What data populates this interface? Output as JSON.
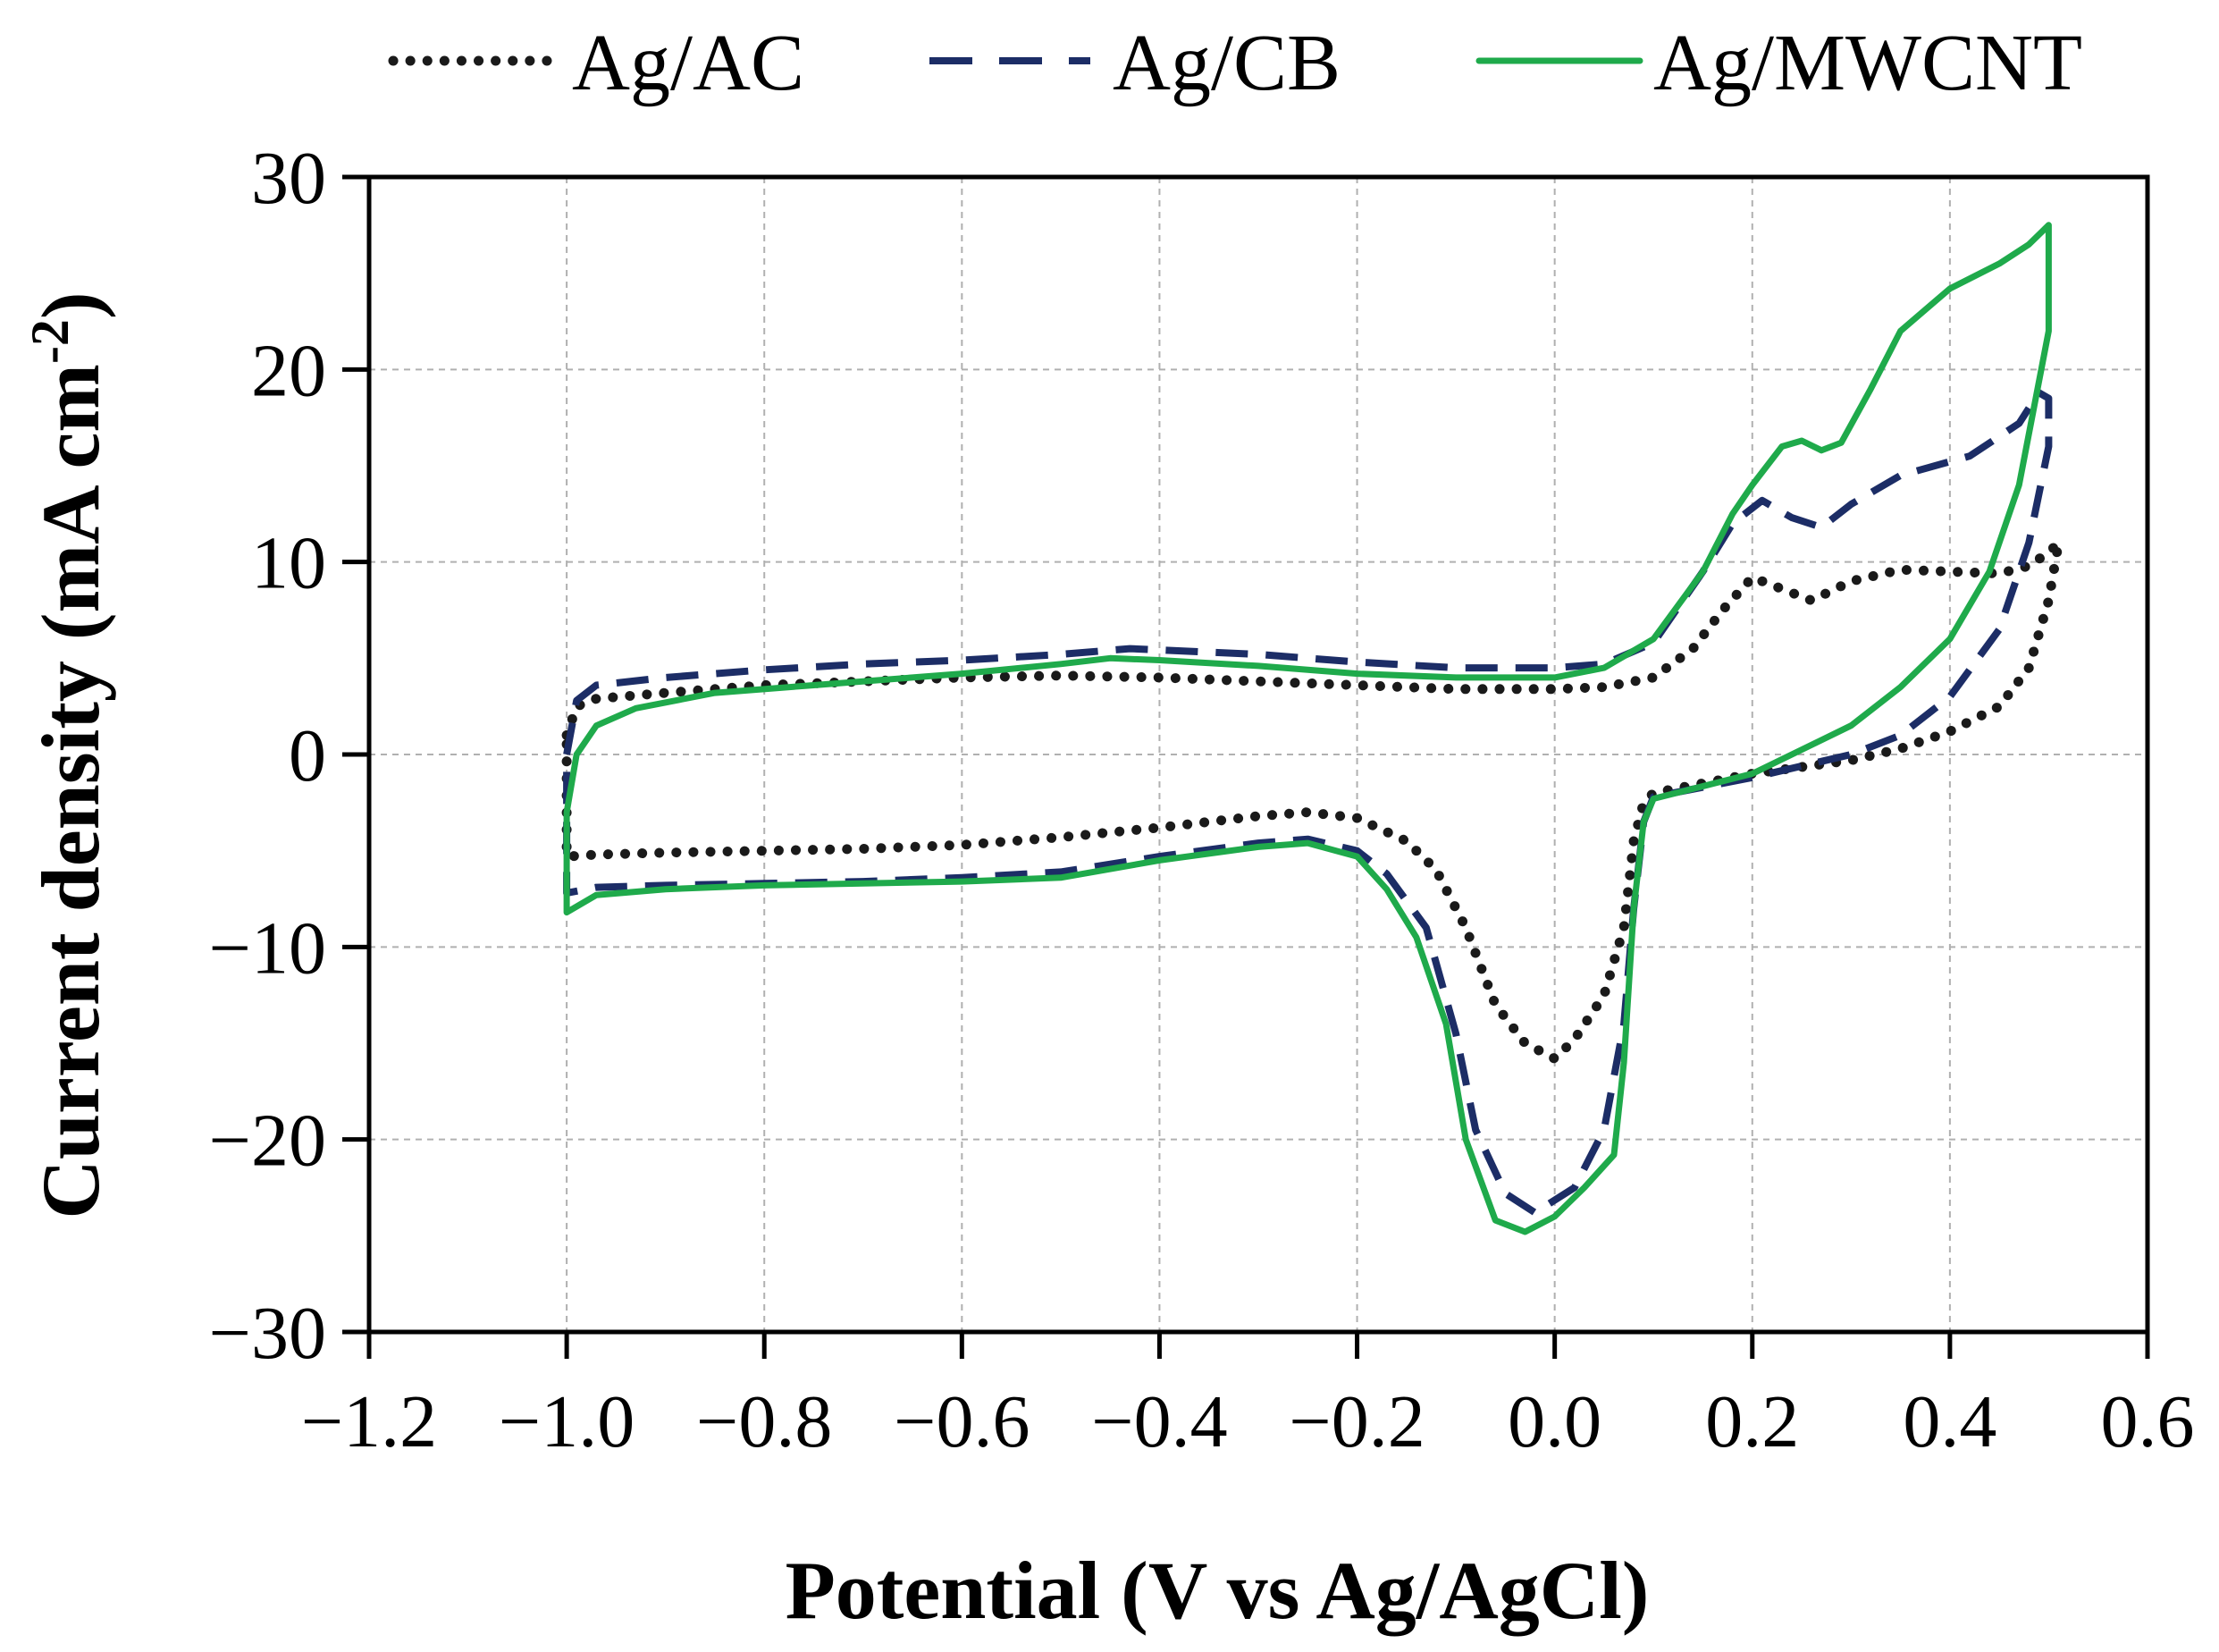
{
  "chart_data": {
    "type": "line",
    "title": "",
    "xlabel": "Potential (V vs Ag/AgCl)",
    "ylabel_main": "Current density (mA cm",
    "ylabel_sup": "-2",
    "ylabel_close": ")",
    "xlim": [
      -1.2,
      0.6
    ],
    "ylim": [
      -30,
      30
    ],
    "xticks": [
      -1.2,
      -1.0,
      -0.8,
      -0.6,
      -0.4,
      -0.2,
      0.0,
      0.2,
      0.4,
      0.6
    ],
    "xtick_labels": [
      "−1.2",
      "−1.0",
      "−0.8",
      "−0.6",
      "−0.4",
      "−0.2",
      "0.0",
      "0.2",
      "0.4",
      "0.6"
    ],
    "yticks": [
      -30,
      -20,
      -10,
      0,
      10,
      20,
      30
    ],
    "ytick_labels": [
      "−30",
      "−20",
      "−10",
      "0",
      "10",
      "20",
      "30"
    ],
    "grid": true,
    "legend_position": "top",
    "series": [
      {
        "name": "Ag/AC",
        "style": "dotted",
        "color": "#1a1a1a",
        "points": [
          [
            -1.0,
            1.0
          ],
          [
            -0.99,
            2.5
          ],
          [
            -0.97,
            2.9
          ],
          [
            -0.9,
            3.2
          ],
          [
            -0.8,
            3.6
          ],
          [
            -0.7,
            3.8
          ],
          [
            -0.6,
            4.0
          ],
          [
            -0.5,
            4.1
          ],
          [
            -0.4,
            4.0
          ],
          [
            -0.3,
            3.8
          ],
          [
            -0.2,
            3.6
          ],
          [
            -0.1,
            3.4
          ],
          [
            0.0,
            3.4
          ],
          [
            0.05,
            3.5
          ],
          [
            0.1,
            4.0
          ],
          [
            0.14,
            5.5
          ],
          [
            0.17,
            7.5
          ],
          [
            0.2,
            9.2
          ],
          [
            0.23,
            8.6
          ],
          [
            0.26,
            8.0
          ],
          [
            0.3,
            9.0
          ],
          [
            0.35,
            9.6
          ],
          [
            0.4,
            9.5
          ],
          [
            0.45,
            9.4
          ],
          [
            0.48,
            9.8
          ],
          [
            0.5,
            10.5
          ],
          [
            0.51,
            11.0
          ],
          [
            0.5,
            8.0
          ],
          [
            0.48,
            4.5
          ],
          [
            0.45,
            2.5
          ],
          [
            0.4,
            1.2
          ],
          [
            0.35,
            0.3
          ],
          [
            0.3,
            -0.3
          ],
          [
            0.2,
            -1.0
          ],
          [
            0.1,
            -2.0
          ],
          [
            0.09,
            -2.5
          ],
          [
            0.08,
            -4.5
          ],
          [
            0.07,
            -9.0
          ],
          [
            0.05,
            -12.5
          ],
          [
            0.02,
            -14.8
          ],
          [
            0.0,
            -15.8
          ],
          [
            -0.03,
            -15.0
          ],
          [
            -0.06,
            -13.0
          ],
          [
            -0.09,
            -9.0
          ],
          [
            -0.12,
            -6.0
          ],
          [
            -0.15,
            -4.5
          ],
          [
            -0.2,
            -3.3
          ],
          [
            -0.25,
            -3.0
          ],
          [
            -0.3,
            -3.2
          ],
          [
            -0.4,
            -3.8
          ],
          [
            -0.5,
            -4.3
          ],
          [
            -0.6,
            -4.7
          ],
          [
            -0.7,
            -4.9
          ],
          [
            -0.8,
            -5.0
          ],
          [
            -0.9,
            -5.1
          ],
          [
            -0.97,
            -5.2
          ],
          [
            -1.0,
            -5.3
          ],
          [
            -1.0,
            1.0
          ]
        ]
      },
      {
        "name": "Ag/CB",
        "style": "dashed",
        "color": "#1c2d66",
        "points": [
          [
            -1.0,
            0.0
          ],
          [
            -0.99,
            2.8
          ],
          [
            -0.97,
            3.6
          ],
          [
            -0.9,
            4.0
          ],
          [
            -0.8,
            4.4
          ],
          [
            -0.7,
            4.7
          ],
          [
            -0.6,
            4.9
          ],
          [
            -0.5,
            5.2
          ],
          [
            -0.43,
            5.5
          ],
          [
            -0.3,
            5.2
          ],
          [
            -0.2,
            4.8
          ],
          [
            -0.1,
            4.5
          ],
          [
            0.0,
            4.5
          ],
          [
            0.05,
            4.7
          ],
          [
            0.1,
            5.8
          ],
          [
            0.15,
            9.5
          ],
          [
            0.18,
            12.0
          ],
          [
            0.21,
            13.2
          ],
          [
            0.24,
            12.3
          ],
          [
            0.27,
            11.8
          ],
          [
            0.3,
            13.0
          ],
          [
            0.35,
            14.5
          ],
          [
            0.42,
            15.5
          ],
          [
            0.47,
            17.2
          ],
          [
            0.49,
            18.8
          ],
          [
            0.5,
            18.5
          ],
          [
            0.5,
            16.0
          ],
          [
            0.48,
            11.0
          ],
          [
            0.45,
            6.5
          ],
          [
            0.4,
            3.0
          ],
          [
            0.35,
            1.0
          ],
          [
            0.3,
            0.0
          ],
          [
            0.2,
            -1.2
          ],
          [
            0.1,
            -2.2
          ],
          [
            0.09,
            -3.5
          ],
          [
            0.08,
            -8.0
          ],
          [
            0.07,
            -14.0
          ],
          [
            0.05,
            -19.5
          ],
          [
            0.02,
            -22.5
          ],
          [
            -0.02,
            -23.8
          ],
          [
            -0.05,
            -22.8
          ],
          [
            -0.08,
            -19.5
          ],
          [
            -0.1,
            -14.5
          ],
          [
            -0.13,
            -9.0
          ],
          [
            -0.17,
            -6.2
          ],
          [
            -0.2,
            -5.0
          ],
          [
            -0.25,
            -4.4
          ],
          [
            -0.3,
            -4.6
          ],
          [
            -0.4,
            -5.3
          ],
          [
            -0.5,
            -6.1
          ],
          [
            -0.6,
            -6.4
          ],
          [
            -0.7,
            -6.6
          ],
          [
            -0.8,
            -6.7
          ],
          [
            -0.9,
            -6.8
          ],
          [
            -0.97,
            -6.9
          ],
          [
            -1.0,
            -7.2
          ],
          [
            -1.0,
            0.0
          ]
        ]
      },
      {
        "name": "Ag/MWCNT",
        "style": "solid",
        "color": "#1faa4b",
        "points": [
          [
            -1.0,
            -3.0
          ],
          [
            -0.99,
            0.0
          ],
          [
            -0.97,
            1.5
          ],
          [
            -0.93,
            2.4
          ],
          [
            -0.85,
            3.2
          ],
          [
            -0.75,
            3.6
          ],
          [
            -0.6,
            4.2
          ],
          [
            -0.5,
            4.7
          ],
          [
            -0.45,
            5.0
          ],
          [
            -0.4,
            4.9
          ],
          [
            -0.3,
            4.6
          ],
          [
            -0.2,
            4.2
          ],
          [
            -0.1,
            4.0
          ],
          [
            0.0,
            4.0
          ],
          [
            0.05,
            4.5
          ],
          [
            0.1,
            6.0
          ],
          [
            0.15,
            9.5
          ],
          [
            0.18,
            12.5
          ],
          [
            0.2,
            14.0
          ],
          [
            0.23,
            16.0
          ],
          [
            0.25,
            16.3
          ],
          [
            0.27,
            15.8
          ],
          [
            0.29,
            16.2
          ],
          [
            0.32,
            19.0
          ],
          [
            0.35,
            22.0
          ],
          [
            0.4,
            24.2
          ],
          [
            0.45,
            25.5
          ],
          [
            0.48,
            26.5
          ],
          [
            0.5,
            27.5
          ],
          [
            0.5,
            22.0
          ],
          [
            0.47,
            14.0
          ],
          [
            0.44,
            9.5
          ],
          [
            0.4,
            6.0
          ],
          [
            0.35,
            3.5
          ],
          [
            0.3,
            1.5
          ],
          [
            0.2,
            -1.0
          ],
          [
            0.1,
            -2.3
          ],
          [
            0.09,
            -3.5
          ],
          [
            0.08,
            -8.0
          ],
          [
            0.07,
            -16.0
          ],
          [
            0.06,
            -20.8
          ],
          [
            0.03,
            -22.5
          ],
          [
            0.0,
            -24.0
          ],
          [
            -0.03,
            -24.8
          ],
          [
            -0.06,
            -24.2
          ],
          [
            -0.09,
            -20.0
          ],
          [
            -0.11,
            -14.0
          ],
          [
            -0.14,
            -9.5
          ],
          [
            -0.17,
            -7.0
          ],
          [
            -0.2,
            -5.3
          ],
          [
            -0.25,
            -4.6
          ],
          [
            -0.3,
            -4.8
          ],
          [
            -0.4,
            -5.5
          ],
          [
            -0.5,
            -6.4
          ],
          [
            -0.6,
            -6.6
          ],
          [
            -0.7,
            -6.7
          ],
          [
            -0.8,
            -6.8
          ],
          [
            -0.9,
            -7.0
          ],
          [
            -0.97,
            -7.3
          ],
          [
            -1.0,
            -8.2
          ],
          [
            -1.0,
            -3.0
          ]
        ]
      }
    ]
  }
}
